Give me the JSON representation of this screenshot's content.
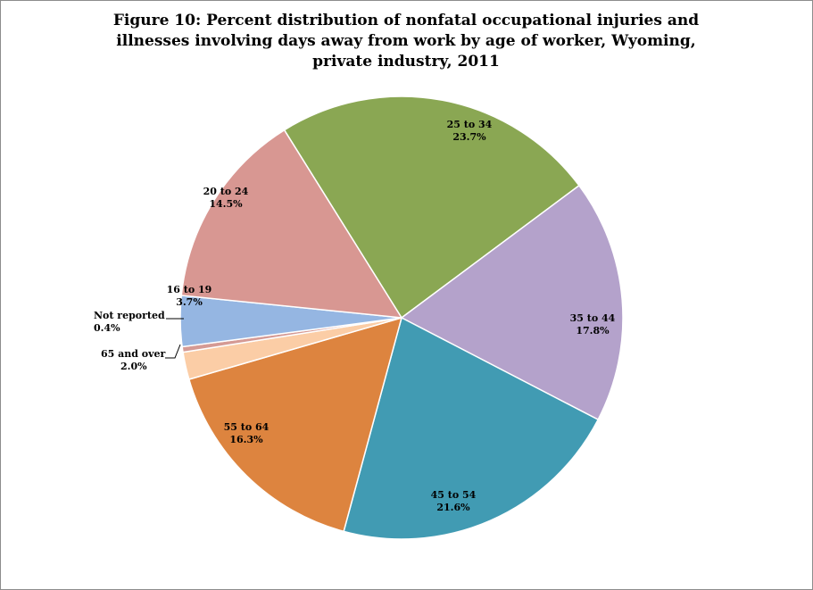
{
  "chart_data": {
    "type": "pie",
    "title": "Figure 10: Percent distribution of nonfatal occupational injuries and illnesses involving days away from work by age of worker, Wyoming, private industry, 2011",
    "title_lines": [
      "Figure 10: Percent distribution of nonfatal occupational injuries and",
      "illnesses involving days away from work by age of worker, Wyoming,",
      "private industry, 2011"
    ],
    "slices": [
      {
        "label": "25 to 34",
        "value": 23.7,
        "value_label": "23.7%",
        "color": "#8aa753"
      },
      {
        "label": "35 to 44",
        "value": 17.8,
        "value_label": "17.8%",
        "color": "#b4a2cb"
      },
      {
        "label": "45 to 54",
        "value": 21.6,
        "value_label": "21.6%",
        "color": "#419bb3"
      },
      {
        "label": "55 to 64",
        "value": 16.3,
        "value_label": "16.3%",
        "color": "#dd843f"
      },
      {
        "label": "65 and over",
        "value": 2.0,
        "value_label": "2.0%",
        "color": "#fbcda6"
      },
      {
        "label": "Not reported",
        "value": 0.4,
        "value_label": "0.4%",
        "color": "#d59a94"
      },
      {
        "label": "16 to 19",
        "value": 3.7,
        "value_label": "3.7%",
        "color": "#95b6e2"
      },
      {
        "label": "20 to 24",
        "value": 14.5,
        "value_label": "14.5%",
        "color": "#d89792"
      }
    ],
    "legend": "none",
    "label_placement": "inside, with leader lines for small slices"
  }
}
